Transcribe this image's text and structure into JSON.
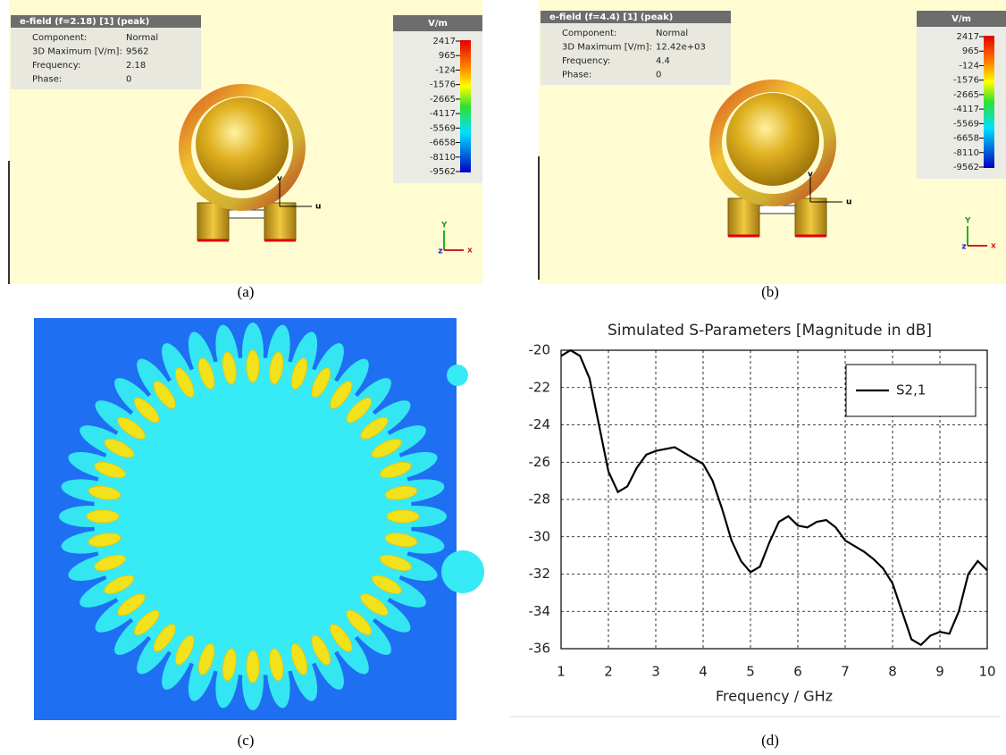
{
  "field_views": [
    {
      "header": "e-field (f=2.18) [1] (peak)",
      "unit": "V/m",
      "info": [
        [
          "Component:",
          "Normal"
        ],
        [
          "3D Maximum [V/m]:",
          "9562"
        ],
        [
          "Frequency:",
          "2.18"
        ],
        [
          "Phase:",
          "0"
        ]
      ],
      "scale": [
        "2417",
        "965",
        "-124",
        "-1576",
        "-2665",
        "-4117",
        "-5569",
        "-6658",
        "-8110",
        "-9562"
      ],
      "axis_letters": [
        "Y",
        "z",
        "x",
        "v",
        "u"
      ]
    },
    {
      "header": "e-field (f=4.4) [1] (peak)",
      "unit": "V/m",
      "info": [
        [
          "Component:",
          "Normal"
        ],
        [
          "3D Maximum [V/m]:",
          "12.42e+03"
        ],
        [
          "Frequency:",
          "4.4"
        ],
        [
          "Phase:",
          "0"
        ]
      ],
      "scale": [
        "2417",
        "965",
        "-124",
        "-1576",
        "-2665",
        "-4117",
        "-5569",
        "-6658",
        "-8110",
        "-9562"
      ],
      "axis_letters": [
        "Y",
        "z",
        "x",
        "v",
        "u"
      ]
    }
  ],
  "captions": [
    "(a)",
    "(b)",
    "(c)",
    "(d)"
  ],
  "chart_data": {
    "type": "line",
    "title": "Simulated S-Parameters [Magnitude in dB]",
    "x_label": "Frequency / GHz",
    "x": [
      1,
      1.2,
      1.4,
      1.6,
      1.8,
      2,
      2.2,
      2.4,
      2.6,
      2.8,
      3,
      3.2,
      3.4,
      3.6,
      3.8,
      4,
      4.2,
      4.4,
      4.6,
      4.8,
      5,
      5.2,
      5.4,
      5.6,
      5.8,
      6,
      6.2,
      6.4,
      6.6,
      6.8,
      7,
      7.2,
      7.4,
      7.6,
      7.8,
      8,
      8.2,
      8.4,
      8.6,
      8.8,
      9,
      9.2,
      9.4,
      9.6,
      9.8,
      10
    ],
    "series": [
      {
        "name": "S2,1",
        "color": "#000000",
        "values": [
          -20.3,
          -20.0,
          -20.3,
          -21.5,
          -24,
          -26.5,
          -27.6,
          -27.3,
          -26.3,
          -25.6,
          -25.4,
          -25.3,
          -25.2,
          -25.5,
          -25.8,
          -26.1,
          -27,
          -28.5,
          -30.2,
          -31.3,
          -31.9,
          -31.6,
          -30.3,
          -29.2,
          -28.9,
          -29.4,
          -29.5,
          -29.2,
          -29.1,
          -29.5,
          -30.2,
          -30.5,
          -30.8,
          -31.2,
          -31.7,
          -32.5,
          -34,
          -35.5,
          -35.8,
          -35.3,
          -35.1,
          -35.2,
          -34,
          -32,
          -31.3,
          -31.8
        ]
      }
    ],
    "xlim": [
      1,
      10
    ],
    "xticks": [
      1,
      2,
      3,
      4,
      5,
      6,
      7,
      8,
      9,
      10
    ],
    "ylim": [
      -36,
      -20
    ],
    "yticks": [
      -36,
      -34,
      -32,
      -30,
      -28,
      -26,
      -24,
      -22,
      -20
    ],
    "grid": true,
    "legend": "upper right"
  }
}
